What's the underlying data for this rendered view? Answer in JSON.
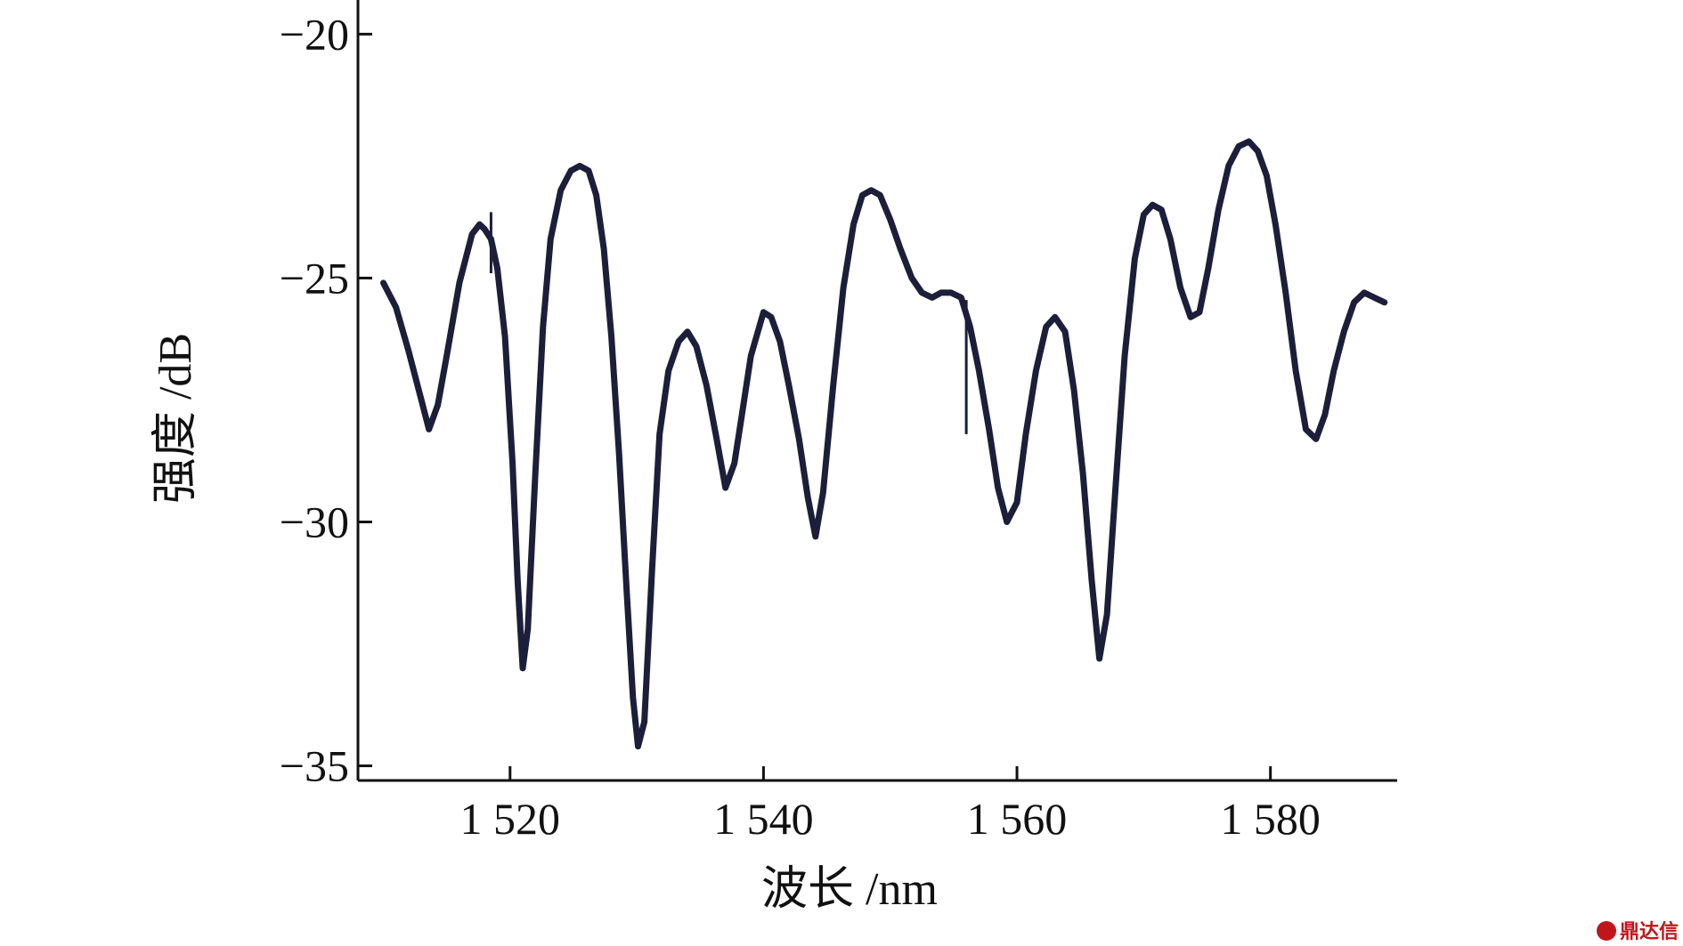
{
  "chart_data": {
    "type": "line",
    "xlabel": "波长 /nm",
    "ylabel": "强度 /dB",
    "xlim": [
      1508,
      1590
    ],
    "ylim": [
      -35.3,
      -19.3
    ],
    "xticks": [
      1520,
      1540,
      1560,
      1580
    ],
    "xtick_labels": [
      "1 520",
      "1 540",
      "1 560",
      "1 580"
    ],
    "yticks": [
      -20,
      -25,
      -30,
      -35
    ],
    "ytick_labels": [
      "−20",
      "−25",
      "−30",
      "−35"
    ],
    "grid": false,
    "legend": false,
    "series": [
      {
        "color": "#1c1f3a",
        "x": [
          1510,
          1511,
          1512,
          1513,
          1513.6,
          1514.3,
          1515,
          1516,
          1517,
          1517.6,
          1518,
          1518.5,
          1519,
          1519.6,
          1520.2,
          1520.6,
          1521,
          1521.4,
          1522,
          1522.6,
          1523.2,
          1524,
          1524.8,
          1525.5,
          1526.2,
          1526.8,
          1527.4,
          1528,
          1528.6,
          1529.2,
          1529.7,
          1530.1,
          1530.6,
          1531.2,
          1531.8,
          1532.5,
          1533.3,
          1534,
          1534.7,
          1535.5,
          1536.3,
          1537,
          1537.7,
          1538.3,
          1539,
          1540,
          1540.6,
          1541.3,
          1542,
          1542.8,
          1543.5,
          1544.1,
          1544.7,
          1545.5,
          1546.3,
          1547.1,
          1547.8,
          1548.5,
          1549.2,
          1550,
          1550.8,
          1551.7,
          1552.5,
          1553.3,
          1554,
          1554.8,
          1555.6,
          1556.3,
          1557,
          1557.8,
          1558.5,
          1559.2,
          1560,
          1560.7,
          1561.5,
          1562.3,
          1563,
          1563.8,
          1564.5,
          1565.2,
          1565.9,
          1566.5,
          1567.1,
          1567.8,
          1568.5,
          1569.3,
          1570,
          1570.7,
          1571.4,
          1572.1,
          1572.9,
          1573.7,
          1574.4,
          1575.1,
          1575.9,
          1576.7,
          1577.5,
          1578.3,
          1579,
          1579.7,
          1580.4,
          1581.2,
          1582,
          1582.8,
          1583.6,
          1584.3,
          1585,
          1585.8,
          1586.6,
          1587.4,
          1588.2,
          1589
        ],
        "y": [
          -25.1,
          -25.6,
          -26.5,
          -27.5,
          -28.1,
          -27.6,
          -26.6,
          -25.1,
          -24.1,
          -23.9,
          -24.0,
          -24.2,
          -24.8,
          -26.2,
          -28.8,
          -31.2,
          -33.0,
          -32.2,
          -29.0,
          -26.0,
          -24.2,
          -23.2,
          -22.8,
          -22.7,
          -22.8,
          -23.3,
          -24.4,
          -26.2,
          -28.6,
          -31.4,
          -33.6,
          -34.6,
          -34.1,
          -31.0,
          -28.2,
          -26.9,
          -26.3,
          -26.1,
          -26.4,
          -27.2,
          -28.3,
          -29.3,
          -28.8,
          -27.8,
          -26.6,
          -25.7,
          -25.8,
          -26.3,
          -27.2,
          -28.3,
          -29.5,
          -30.3,
          -29.4,
          -27.2,
          -25.2,
          -23.9,
          -23.3,
          -23.2,
          -23.3,
          -23.8,
          -24.4,
          -25.0,
          -25.3,
          -25.4,
          -25.3,
          -25.3,
          -25.4,
          -26.0,
          -26.9,
          -28.1,
          -29.3,
          -30.0,
          -29.6,
          -28.2,
          -26.9,
          -26.0,
          -25.8,
          -26.1,
          -27.3,
          -29.0,
          -31.2,
          -32.8,
          -31.9,
          -29.2,
          -26.6,
          -24.6,
          -23.7,
          -23.5,
          -23.6,
          -24.2,
          -25.2,
          -25.8,
          -25.7,
          -24.8,
          -23.6,
          -22.7,
          -22.3,
          -22.2,
          -22.4,
          -22.9,
          -23.9,
          -25.3,
          -26.9,
          -28.1,
          -28.3,
          -27.8,
          -26.9,
          -26.1,
          -25.5,
          -25.3,
          -25.4,
          -25.5
        ]
      }
    ]
  },
  "watermark": {
    "text": "鼎达信"
  }
}
